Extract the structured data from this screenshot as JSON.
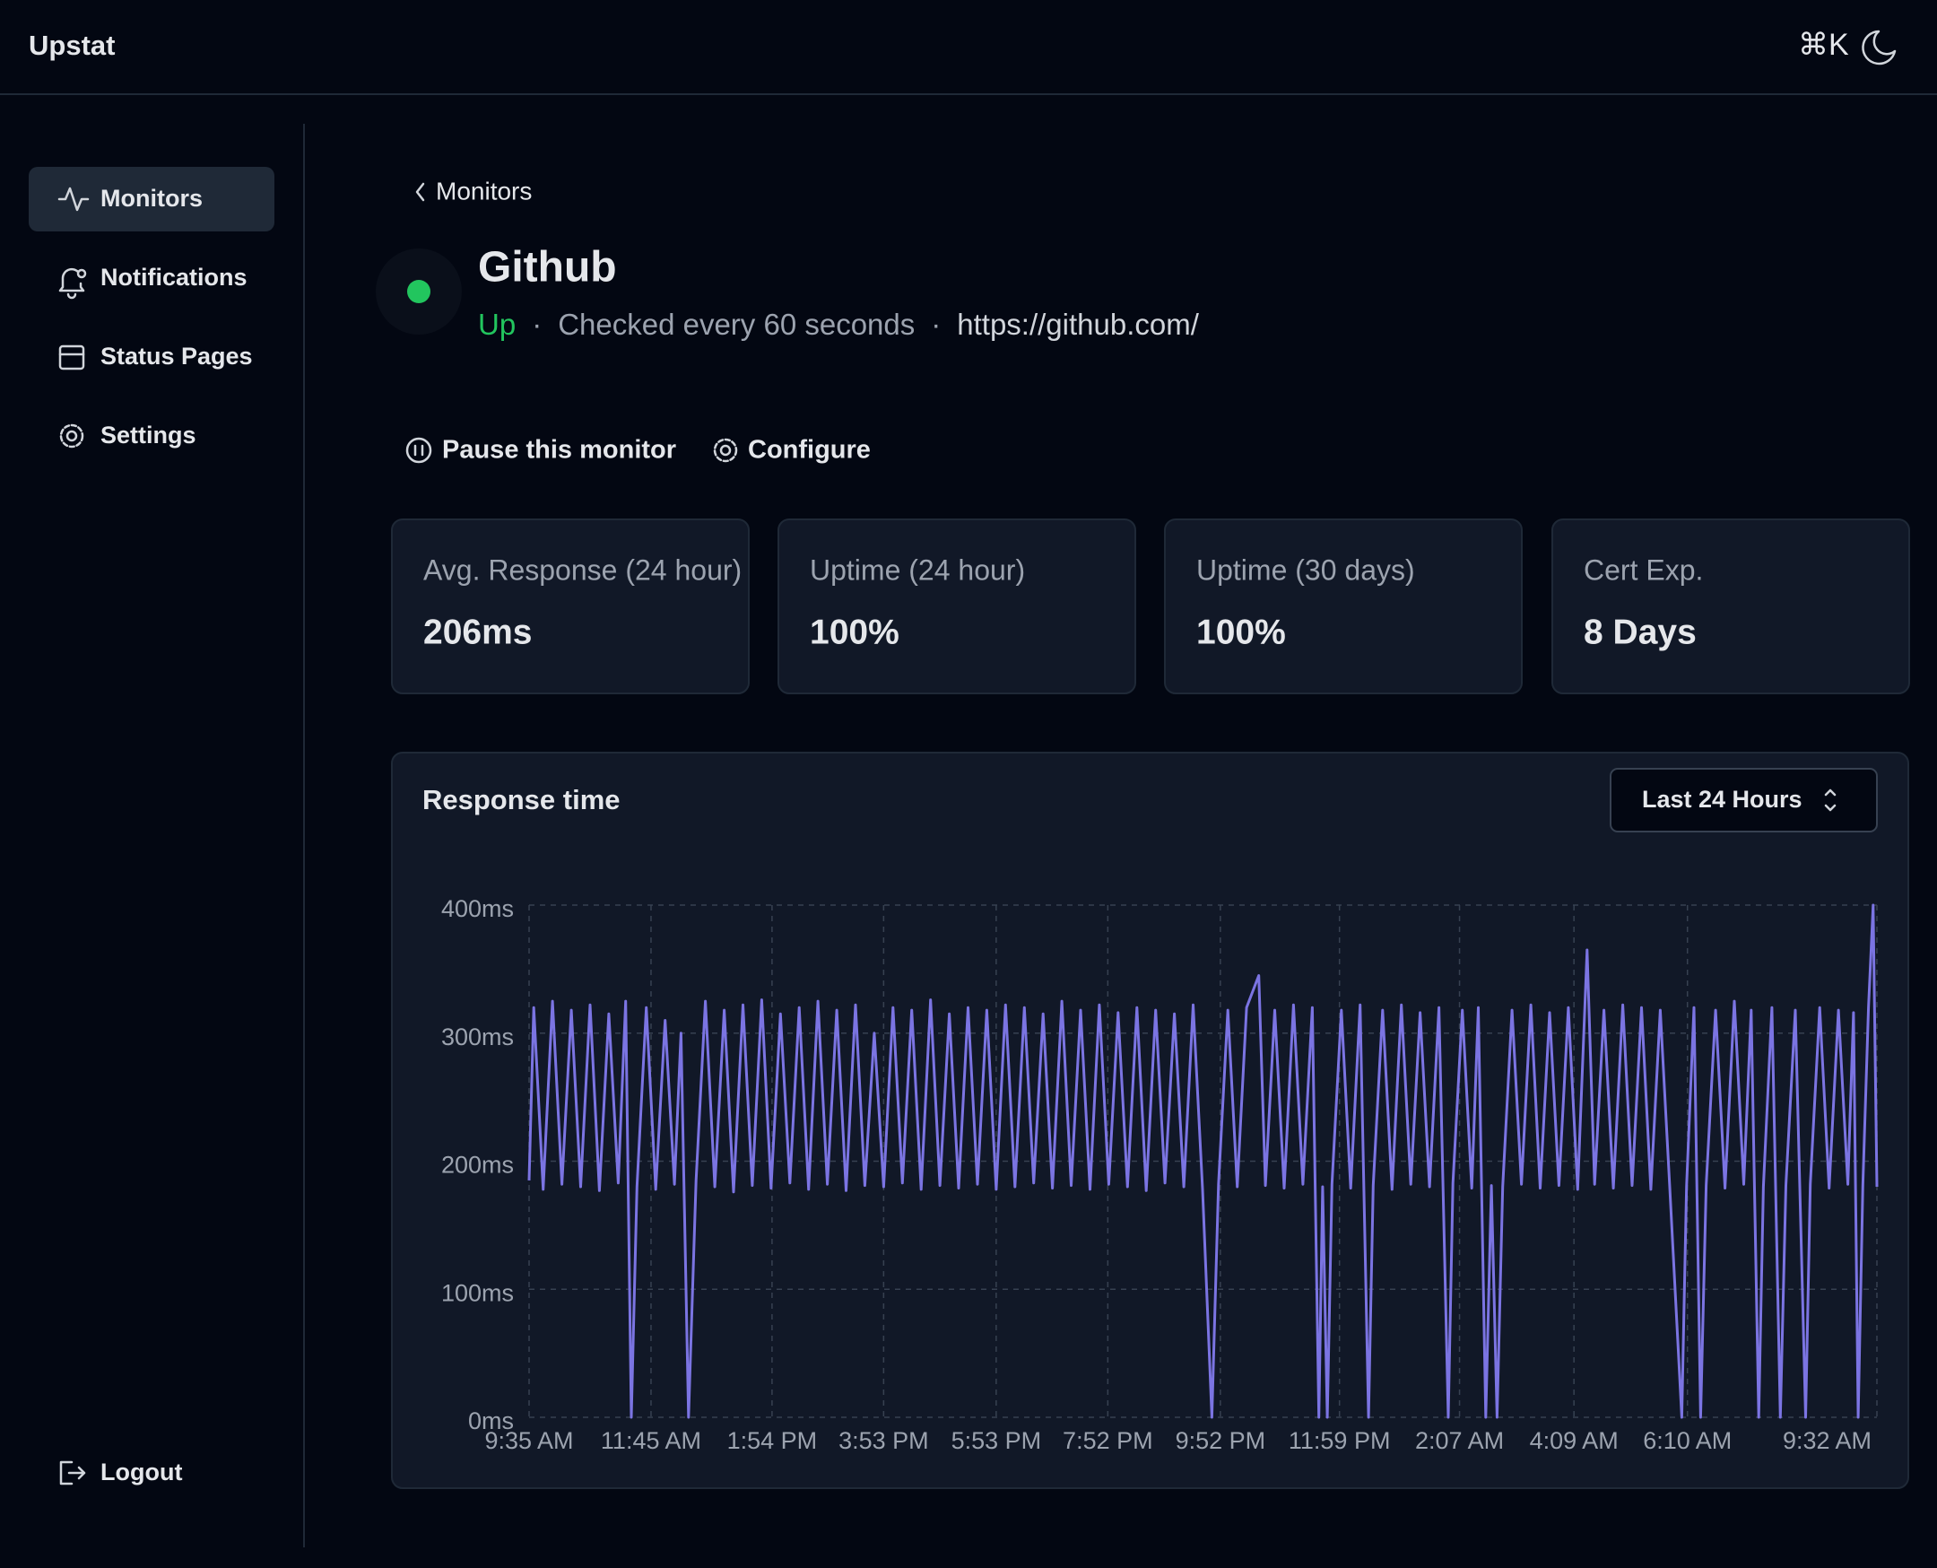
{
  "header": {
    "brand": "Upstat",
    "shortcut": "⌘K"
  },
  "sidebar": {
    "items": [
      "Monitors",
      "Notifications",
      "Status Pages",
      "Settings"
    ],
    "logout": "Logout"
  },
  "monitor": {
    "back": "Monitors",
    "name": "Github",
    "status": "Up",
    "interval": "Checked every 60 seconds",
    "url": "https://github.com/"
  },
  "actions": [
    "Pause this monitor",
    "Configure"
  ],
  "stats": [
    {
      "label": "Avg. Response (24 hour)",
      "value": "206ms"
    },
    {
      "label": "Uptime (24 hour)",
      "value": "100%"
    },
    {
      "label": "Uptime (30 days)",
      "value": "100%"
    },
    {
      "label": "Cert Exp.",
      "value": "8 Days"
    }
  ],
  "chart_data": {
    "type": "line",
    "title": "Response time",
    "range_select": "Last 24 Hours",
    "color": "#7b74e2",
    "grid": true,
    "x": [
      0,
      5,
      15,
      25,
      35,
      45,
      55,
      65,
      75,
      85,
      95,
      103,
      109,
      115,
      125,
      135,
      145,
      155,
      162,
      170,
      178,
      188,
      198,
      208,
      218,
      228,
      238,
      248,
      258,
      268,
      278,
      288,
      298,
      308,
      318,
      328,
      338,
      348,
      358,
      368,
      378,
      388,
      398,
      408,
      418,
      428,
      438,
      448,
      458,
      468,
      478,
      488,
      498,
      508,
      518,
      528,
      538,
      548,
      558,
      568,
      578,
      588,
      598,
      608,
      618,
      628,
      638,
      648,
      658,
      668,
      678,
      688,
      698,
      708,
      718,
      728,
      735,
      745,
      755,
      765,
      778,
      785,
      795,
      805,
      815,
      825,
      835,
      842,
      846,
      851,
      856,
      866,
      876,
      886,
      895,
      900,
      910,
      920,
      930,
      940,
      950,
      960,
      970,
      980,
      985,
      995,
      1005,
      1012,
      1020,
      1026,
      1032,
      1038,
      1048,
      1058,
      1068,
      1078,
      1088,
      1098,
      1108,
      1118,
      1128,
      1136,
      1146,
      1156,
      1166,
      1176,
      1186,
      1196,
      1206,
      1216,
      1229,
      1234,
      1242,
      1249,
      1255,
      1265,
      1275,
      1285,
      1295,
      1303,
      1311,
      1316,
      1325,
      1334,
      1340,
      1350,
      1361,
      1366,
      1376,
      1386,
      1396,
      1406,
      1412,
      1417,
      1422,
      1428,
      1433,
      1437
    ],
    "values": [
      185,
      320,
      178,
      325,
      182,
      318,
      180,
      322,
      177,
      315,
      183,
      325,
      0,
      180,
      320,
      178,
      310,
      182,
      300,
      0,
      185,
      325,
      180,
      318,
      176,
      322,
      181,
      326,
      179,
      315,
      183,
      320,
      178,
      325,
      182,
      318,
      177,
      322,
      181,
      300,
      180,
      320,
      183,
      318,
      178,
      326,
      181,
      315,
      179,
      320,
      182,
      318,
      178,
      322,
      180,
      320,
      183,
      315,
      179,
      325,
      181,
      318,
      178,
      322,
      182,
      316,
      180,
      320,
      177,
      318,
      183,
      315,
      180,
      322,
      178,
      0,
      182,
      318,
      180,
      320,
      345,
      181,
      318,
      179,
      322,
      182,
      320,
      0,
      180,
      0,
      182,
      318,
      179,
      322,
      0,
      181,
      318,
      178,
      322,
      182,
      316,
      180,
      320,
      0,
      183,
      318,
      179,
      320,
      0,
      181,
      0,
      180,
      318,
      182,
      322,
      179,
      316,
      181,
      320,
      178,
      365,
      182,
      318,
      179,
      322,
      181,
      320,
      178,
      318,
      182,
      0,
      180,
      320,
      0,
      181,
      318,
      179,
      325,
      182,
      318,
      0,
      180,
      320,
      0,
      181,
      318,
      0,
      182,
      320,
      179,
      318,
      182,
      316,
      0,
      181,
      320,
      400,
      180
    ],
    "xlim": [
      0,
      1437
    ],
    "xticks": [
      {
        "value": 0,
        "label": "9:35 AM"
      },
      {
        "value": 130,
        "label": "11:45 AM"
      },
      {
        "value": 259,
        "label": "1:54 PM"
      },
      {
        "value": 378,
        "label": "3:53 PM"
      },
      {
        "value": 498,
        "label": "5:53 PM"
      },
      {
        "value": 617,
        "label": "7:52 PM"
      },
      {
        "value": 737,
        "label": "9:52 PM"
      },
      {
        "value": 864,
        "label": "11:59 PM"
      },
      {
        "value": 992,
        "label": "2:07 AM"
      },
      {
        "value": 1114,
        "label": "4:09 AM"
      },
      {
        "value": 1235,
        "label": "6:10 AM"
      },
      {
        "value": 1437,
        "label": "9:32 AM"
      }
    ],
    "ylim": [
      0,
      400
    ],
    "yticks": [
      {
        "value": 0,
        "label": "0ms"
      },
      {
        "value": 100,
        "label": "100ms"
      },
      {
        "value": 200,
        "label": "200ms"
      },
      {
        "value": 300,
        "label": "300ms"
      },
      {
        "value": 400,
        "label": "400ms"
      }
    ]
  }
}
